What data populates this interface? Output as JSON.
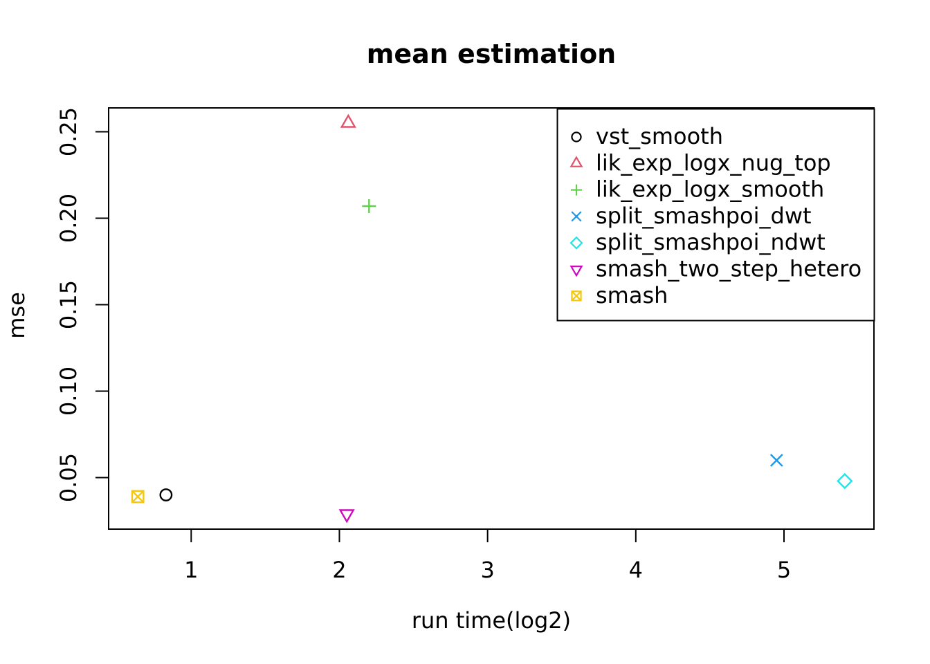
{
  "chart_data": {
    "type": "scatter",
    "title": "mean estimation",
    "xlabel": "run time(log2)",
    "ylabel": "mse",
    "xlim": [
      0.443,
      5.607
    ],
    "ylim": [
      0.0202,
      0.2638
    ],
    "xticks": [
      1,
      2,
      3,
      4,
      5
    ],
    "xtick_labels": [
      "1",
      "2",
      "3",
      "4",
      "5"
    ],
    "yticks": [
      0.05,
      0.1,
      0.15,
      0.2,
      0.25
    ],
    "ytick_labels": [
      "0.05",
      "0.10",
      "0.15",
      "0.20",
      "0.25"
    ],
    "grid": false,
    "legend_position": "top-right",
    "frame_color": "#000000",
    "series": [
      {
        "name": "vst_smooth",
        "marker": "circle",
        "color": "#000000",
        "points": [
          [
            0.83,
            0.04
          ]
        ]
      },
      {
        "name": "lik_exp_logx_nug_top",
        "marker": "triangle-up",
        "color": "#DF536B",
        "points": [
          [
            2.06,
            0.255
          ]
        ]
      },
      {
        "name": "lik_exp_logx_smooth",
        "marker": "plus",
        "color": "#61D04F",
        "points": [
          [
            2.2,
            0.207
          ]
        ]
      },
      {
        "name": "split_smashpoi_dwt",
        "marker": "x",
        "color": "#2297E6",
        "points": [
          [
            4.95,
            0.06
          ]
        ]
      },
      {
        "name": "split_smashpoi_ndwt",
        "marker": "diamond",
        "color": "#28E2E5",
        "points": [
          [
            5.41,
            0.048
          ]
        ]
      },
      {
        "name": "smash_two_step_hetero",
        "marker": "triangle-down",
        "color": "#CD0BBC",
        "points": [
          [
            2.05,
            0.029
          ]
        ]
      },
      {
        "name": "smash",
        "marker": "square-x",
        "color": "#F5C710",
        "points": [
          [
            0.64,
            0.039
          ]
        ]
      }
    ]
  }
}
